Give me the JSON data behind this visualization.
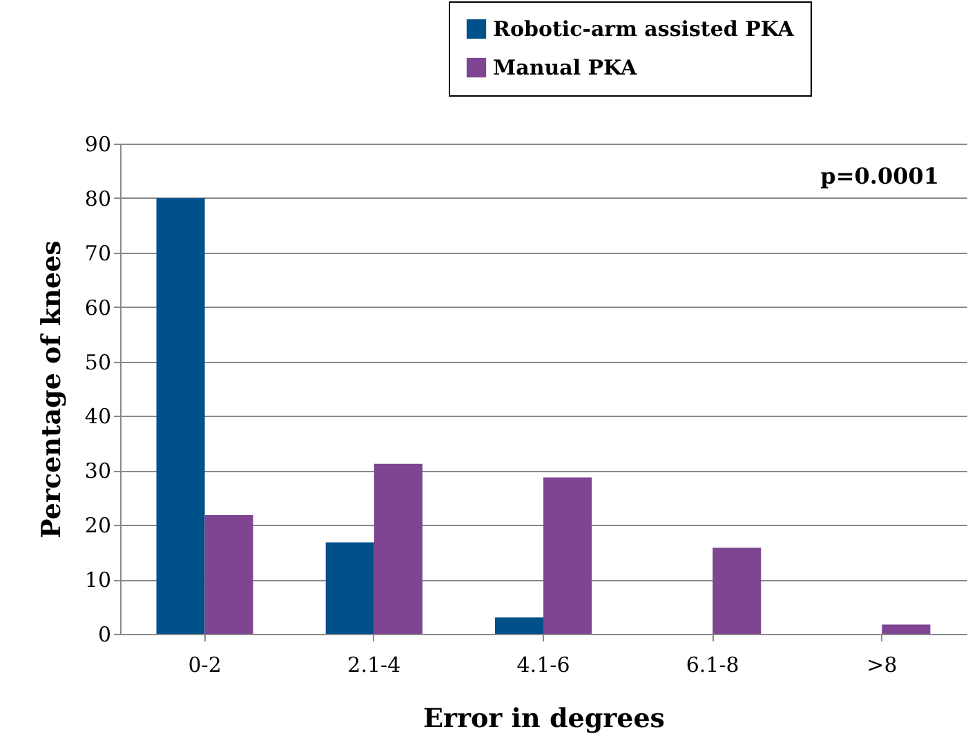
{
  "chart_data": {
    "type": "bar",
    "xlabel": "Error in degrees",
    "ylabel": "Percentage of knees",
    "categories": [
      "0-2",
      "2.1-4",
      "4.1-6",
      "6.1-8",
      ">8"
    ],
    "series": [
      {
        "name": "Robotic-arm assisted PKA",
        "color": "#00508a",
        "values": [
          80,
          16.8,
          3,
          0,
          0
        ]
      },
      {
        "name": "Manual PKA",
        "color": "#7f4593",
        "values": [
          21.8,
          31.2,
          28.7,
          15.8,
          1.7
        ]
      }
    ],
    "ylim": [
      0,
      90
    ],
    "yticks": [
      0,
      10,
      20,
      30,
      40,
      50,
      60,
      70,
      80,
      90
    ],
    "grid": "y",
    "legend": "top right",
    "annotations": [
      "p=0.0001"
    ]
  }
}
